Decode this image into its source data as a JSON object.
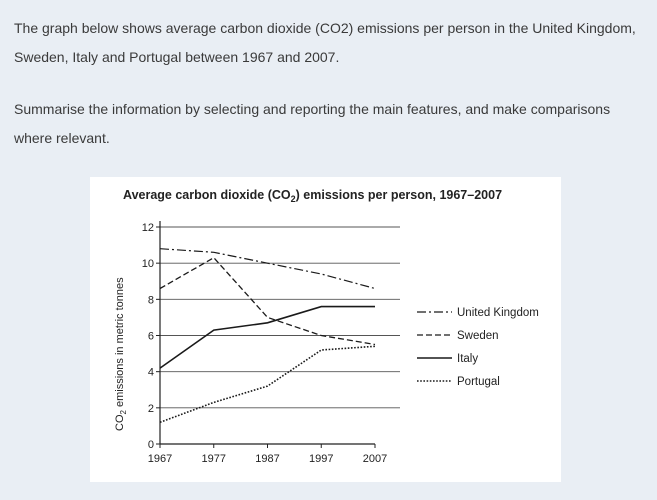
{
  "prompt": {
    "line1": "The graph below shows average carbon dioxide (CO2) emissions per person in the United Kingdom, Sweden, Italy and Portugal between 1967 and 2007.",
    "line2": "Summarise the information by selecting and reporting the main features, and make comparisons where relevant."
  },
  "chart_data": {
    "type": "line",
    "title_prefix": "Average carbon dioxide (CO",
    "title_sub": "2",
    "title_suffix": ") emissions per person, 1967–2007",
    "ylabel_prefix": "CO",
    "ylabel_sub": "2",
    "ylabel_suffix": " emissions in metric tonnes",
    "xlabel": "",
    "x": [
      1967,
      1977,
      1987,
      1997,
      2007
    ],
    "x_tick_labels": [
      "1967",
      "1977",
      "1987",
      "1997",
      "2007"
    ],
    "ylim": [
      0,
      12
    ],
    "y_ticks": [
      0,
      2,
      4,
      6,
      8,
      10,
      12
    ],
    "y_tick_labels": [
      "0",
      "2",
      "4",
      "6",
      "8",
      "10",
      "12"
    ],
    "grid": "horizontal",
    "legend_position": "right",
    "series": [
      {
        "name": "United Kingdom",
        "style": "dash-dot",
        "values": [
          10.8,
          10.6,
          10.0,
          9.4,
          8.6
        ]
      },
      {
        "name": "Sweden",
        "style": "dashed",
        "values": [
          8.6,
          10.3,
          7.0,
          6.0,
          5.5
        ]
      },
      {
        "name": "Italy",
        "style": "solid",
        "values": [
          4.2,
          6.3,
          6.7,
          7.6,
          7.6
        ]
      },
      {
        "name": "Portugal",
        "style": "dotted",
        "values": [
          1.2,
          2.3,
          3.2,
          5.2,
          5.4
        ]
      }
    ]
  }
}
